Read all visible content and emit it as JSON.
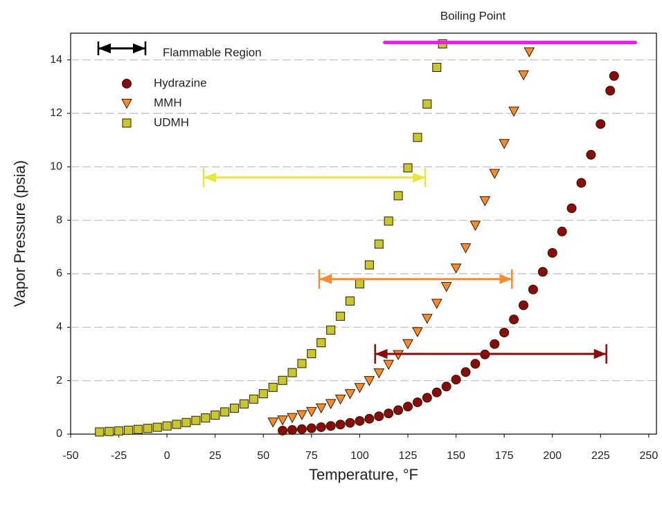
{
  "chart_data": {
    "type": "scatter",
    "xlabel": "Temperature, °F",
    "ylabel": "Vapor Pressure (psia)",
    "xlim": [
      -50,
      254
    ],
    "ylim": [
      0,
      15
    ],
    "xticks": [
      -50,
      -25,
      0,
      25,
      50,
      75,
      100,
      125,
      150,
      175,
      200,
      225,
      250
    ],
    "yticks": [
      0,
      2,
      4,
      6,
      8,
      10,
      12,
      14
    ],
    "grid": true,
    "legend": "upper left",
    "series": [
      {
        "name": "Hydrazine",
        "color": "#8b0a0a",
        "marker": "circle",
        "x": [
          60,
          65,
          70,
          75,
          80,
          85,
          90,
          95,
          100,
          105,
          110,
          115,
          120,
          125,
          130,
          135,
          140,
          145,
          150,
          155,
          160,
          165,
          170,
          175,
          180,
          185,
          190,
          195,
          200,
          205,
          210,
          215,
          220,
          225,
          230,
          232
        ],
        "values": [
          0.13,
          0.155,
          0.185,
          0.219,
          0.259,
          0.305,
          0.359,
          0.421,
          0.492,
          0.574,
          0.667,
          0.773,
          0.895,
          1.03,
          1.19,
          1.36,
          1.56,
          1.78,
          2.04,
          2.32,
          2.63,
          2.98,
          3.37,
          3.8,
          4.29,
          4.82,
          5.41,
          6.07,
          6.78,
          7.58,
          8.45,
          9.4,
          10.45,
          11.6,
          12.85,
          13.4
        ]
      },
      {
        "name": "MMH",
        "color": "#ff8a2a",
        "marker": "triangle-down",
        "x": [
          55,
          60,
          65,
          70,
          75,
          80,
          85,
          90,
          95,
          100,
          105,
          110,
          115,
          120,
          125,
          130,
          135,
          140,
          145,
          150,
          155,
          160,
          165,
          170,
          175,
          180,
          185,
          188
        ],
        "values": [
          0.45,
          0.528,
          0.619,
          0.725,
          0.844,
          0.98,
          1.14,
          1.31,
          1.51,
          1.74,
          2.0,
          2.29,
          2.61,
          2.97,
          3.38,
          3.83,
          4.33,
          4.89,
          5.52,
          6.21,
          6.97,
          7.81,
          8.73,
          9.75,
          10.87,
          12.08,
          13.44,
          14.3
        ]
      },
      {
        "name": "UDMH",
        "color": "#c8c828",
        "marker": "square",
        "x": [
          -35,
          -30,
          -25,
          -20,
          -15,
          -10,
          -5,
          0,
          5,
          10,
          15,
          20,
          25,
          30,
          35,
          40,
          45,
          50,
          55,
          60,
          65,
          70,
          75,
          80,
          85,
          90,
          95,
          100,
          105,
          110,
          115,
          120,
          125,
          130,
          135,
          140,
          143
        ],
        "values": [
          0.08,
          0.098,
          0.12,
          0.146,
          0.177,
          0.213,
          0.256,
          0.306,
          0.365,
          0.433,
          0.512,
          0.604,
          0.71,
          0.83,
          0.97,
          1.13,
          1.31,
          1.51,
          1.75,
          2.01,
          2.3,
          2.64,
          3.01,
          3.42,
          3.89,
          4.41,
          4.98,
          5.62,
          6.33,
          7.11,
          7.97,
          8.92,
          9.96,
          11.1,
          12.35,
          13.72,
          14.6
        ]
      }
    ],
    "ranges": [
      {
        "color": "#e8e838",
        "xmin": 19,
        "xmax": 134,
        "y": 9.6
      },
      {
        "color": "#ff8a2a",
        "xmin": 79,
        "xmax": 179,
        "y": 5.8
      },
      {
        "color": "#8b0a0a",
        "xmin": 108,
        "xmax": 228,
        "y": 3.0
      }
    ],
    "range_legend": "Flammable Region",
    "boiling_point": {
      "label": "Boiling Point",
      "color": "#ff10ff",
      "xmin": 113,
      "xmax": 243,
      "y": 14.65
    }
  }
}
